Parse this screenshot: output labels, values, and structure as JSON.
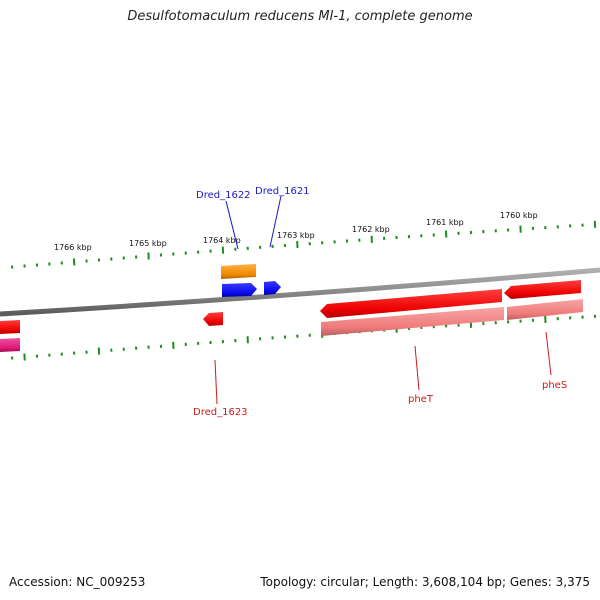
{
  "title": "Desulfotomaculum reducens MI-1, complete genome",
  "footer": {
    "accession": "Accession: NC_009253",
    "summary": "Topology: circular; Length: 3,608,104 bp; Genes: 3,375"
  },
  "colors": {
    "backbone": "#8a8a8a",
    "tick": "#1e8c1e",
    "label_forward": "#1a1acc",
    "label_reverse": "#cc1a1a",
    "gene_blue": "#0a0aee",
    "gene_orange": "#f08a00",
    "gene_red": "#ee0000",
    "gene_pink": "#f07a7a",
    "gene_magenta": "#e01a7a"
  },
  "scale_labels": [
    "1766 kbp",
    "1765 kbp",
    "1764 kbp",
    "1763 kbp",
    "1762 kbp",
    "1761 kbp",
    "1760 kbp"
  ],
  "gene_labels": [
    {
      "text": "Dred_1622",
      "strand": "forward"
    },
    {
      "text": "Dred_1621",
      "strand": "forward"
    },
    {
      "text": "Dred_1623",
      "strand": "reverse"
    },
    {
      "text": "pheT",
      "strand": "reverse"
    },
    {
      "text": "pheS",
      "strand": "reverse"
    }
  ],
  "features": [
    {
      "name": "Dred_1622",
      "track": "forward-cds",
      "strand": "+",
      "color": "gene_blue"
    },
    {
      "name": "Dred_1622",
      "track": "forward-gene",
      "strand": "+",
      "color": "gene_orange"
    },
    {
      "name": "Dred_1621",
      "track": "forward-cds",
      "strand": "+",
      "color": "gene_blue"
    },
    {
      "name": "Dred_1623",
      "track": "reverse-cds",
      "strand": "-",
      "color": "gene_red"
    },
    {
      "name": "pheT",
      "track": "reverse-cds",
      "strand": "-",
      "color": "gene_red"
    },
    {
      "name": "pheT",
      "track": "reverse-gene",
      "strand": "-",
      "color": "gene_pink"
    },
    {
      "name": "pheS",
      "track": "reverse-cds",
      "strand": "-",
      "color": "gene_red"
    },
    {
      "name": "pheS",
      "track": "reverse-gene",
      "strand": "-",
      "color": "gene_pink"
    },
    {
      "name": "",
      "track": "reverse-cds",
      "strand": "-",
      "color": "gene_red"
    },
    {
      "name": "",
      "track": "reverse-gene",
      "strand": "-",
      "color": "gene_magenta"
    }
  ]
}
